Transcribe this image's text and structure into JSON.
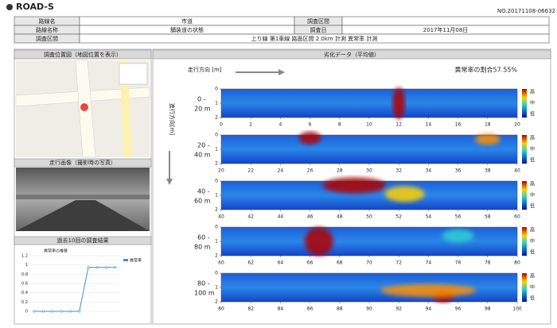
{
  "header": {
    "logo": "ROAD-S",
    "doc_no": "NO.20171108-06632"
  },
  "info": {
    "rows": [
      [
        "路線名",
        "市道",
        "調査区間",
        ""
      ],
      [
        "路線名称",
        "舗装道の状態",
        "調査日",
        "2017年11月08日"
      ],
      [
        "調査区間",
        "上り線 第1車線 路面区間 2.0km 計測 異常率 計測"
      ]
    ]
  },
  "left": {
    "map_title": "調査位置図（地図位置を表示）",
    "photo_title": "走行画像（撮影時の写真）",
    "history_title": "過去10回の調査結果",
    "history_chart": {
      "type": "line",
      "title": "異常率の推移",
      "series": [
        {
          "name": "異常率",
          "color": "#3a8fd6",
          "values": [
            0,
            0,
            0,
            0,
            0,
            0,
            0.95,
            0.95,
            0.95,
            0.95
          ]
        }
      ],
      "ylim": [
        0,
        1.2
      ],
      "yticks": [
        0,
        0.2,
        0.4,
        0.6,
        0.8,
        1,
        1.2
      ]
    }
  },
  "heatmap": {
    "title": "劣化データ（平均値）",
    "direction_label": "走行方向 [m]",
    "ratio": "異常率の割合57.55%",
    "y_axis_label": "進行方向[m]",
    "legend": [
      "高",
      "中",
      "低"
    ],
    "strips": [
      {
        "range_top": "0 -",
        "range_bottom": "20 m",
        "xlim": [
          0,
          20
        ],
        "xticks": [
          0,
          2,
          4,
          6,
          8,
          10,
          12,
          14,
          16,
          18,
          20
        ],
        "ylim": [
          0,
          2
        ],
        "yticks": [
          0,
          1,
          2
        ]
      },
      {
        "range_top": "20 -",
        "range_bottom": "40 m",
        "xlim": [
          20,
          40
        ],
        "xticks": [
          20,
          22,
          24,
          26,
          28,
          30,
          32,
          34,
          36,
          38,
          40
        ],
        "ylim": [
          0,
          2
        ],
        "yticks": [
          0,
          1,
          2
        ]
      },
      {
        "range_top": "40 -",
        "range_bottom": "60 m",
        "xlim": [
          40,
          60
        ],
        "xticks": [
          40,
          42,
          44,
          46,
          48,
          50,
          52,
          54,
          56,
          58,
          60
        ],
        "ylim": [
          0,
          2
        ],
        "yticks": [
          0,
          1,
          2
        ]
      },
      {
        "range_top": "60 -",
        "range_bottom": "80 m",
        "xlim": [
          60,
          80
        ],
        "xticks": [
          60,
          62,
          64,
          66,
          68,
          70,
          72,
          74,
          76,
          78,
          80
        ],
        "ylim": [
          0,
          2
        ],
        "yticks": [
          0,
          1,
          2
        ]
      },
      {
        "range_top": "80 -",
        "range_bottom": "100 m",
        "xlim": [
          80,
          100
        ],
        "xticks": [
          80,
          82,
          84,
          86,
          88,
          90,
          92,
          94,
          96,
          98,
          100
        ],
        "ylim": [
          0,
          2
        ],
        "yticks": [
          0,
          1,
          2
        ]
      }
    ]
  }
}
